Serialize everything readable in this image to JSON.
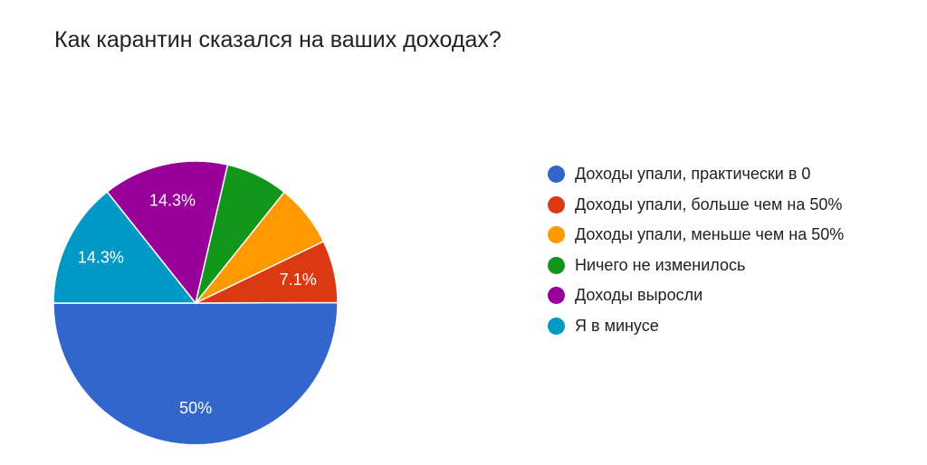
{
  "chart_data": {
    "type": "pie",
    "title": "Как карантин сказался на ваших доходах?",
    "legend_position": "right",
    "slices": [
      {
        "label": "Доходы упали, практически в 0",
        "value": 50,
        "display": "50%",
        "color": "#3366cc"
      },
      {
        "label": "Доходы упали, больше чем на 50%",
        "value": 7.1,
        "display": "7.1%",
        "color": "#dc3912"
      },
      {
        "label": "Доходы упали, меньше чем на 50%",
        "value": 7.1,
        "display": "",
        "color": "#ff9900"
      },
      {
        "label": "Ничего не изменилось",
        "value": 7.1,
        "display": "",
        "color": "#109618"
      },
      {
        "label": "Доходы выросли",
        "value": 14.3,
        "display": "14.3%",
        "color": "#990099"
      },
      {
        "label": "Я в минусе",
        "value": 14.3,
        "display": "14.3%",
        "color": "#0099c6"
      }
    ]
  }
}
